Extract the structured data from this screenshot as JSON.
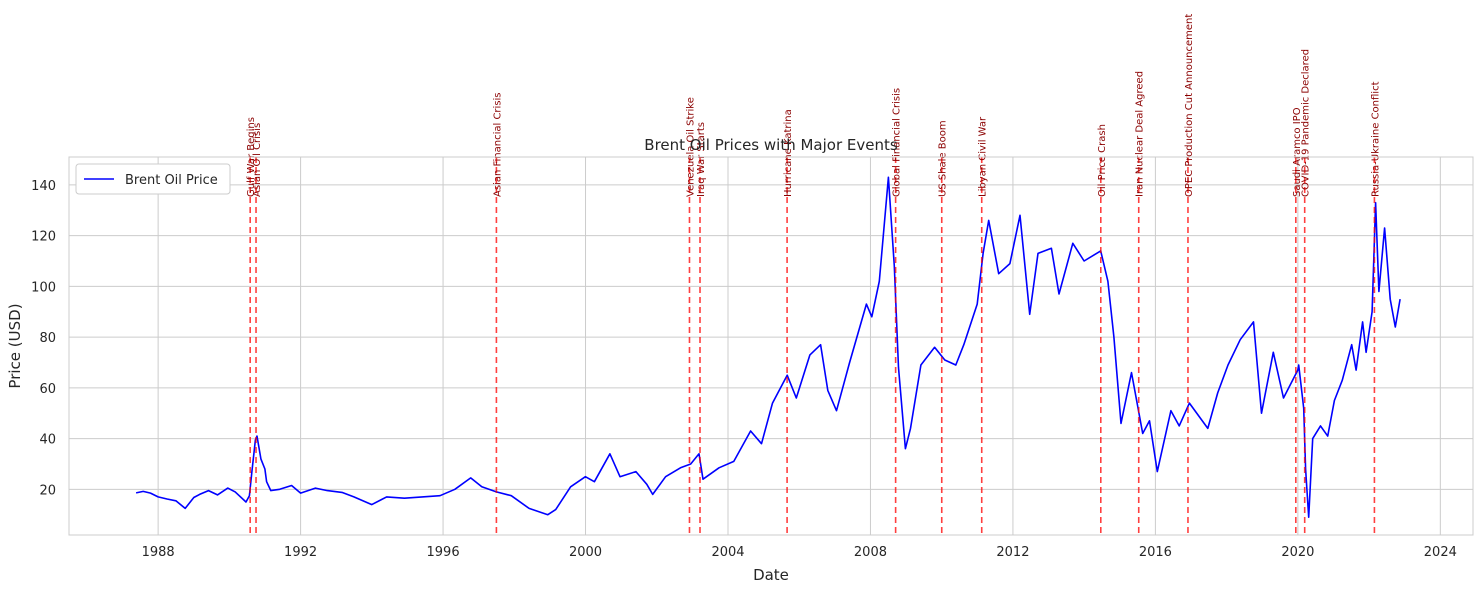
{
  "chart_data": {
    "type": "line",
    "title": "Brent Oil Prices with Major Events",
    "xlabel": "Date",
    "ylabel": "Price (USD)",
    "xlim": [
      "1985-07-01",
      "2024-12-01"
    ],
    "ylim": [
      2,
      151
    ],
    "xticks": [
      "1988",
      "1992",
      "1996",
      "2000",
      "2004",
      "2008",
      "2012",
      "2016",
      "2020",
      "2024"
    ],
    "yticks": [
      20,
      40,
      60,
      80,
      100,
      120,
      140
    ],
    "grid": true,
    "legend_position": "top-left",
    "colors": {
      "series": "#0000ff",
      "event": "#ff0000",
      "event_label": "#8b0000",
      "grid": "#cccccc"
    },
    "series": [
      {
        "name": "Brent Oil Price",
        "x": [
          "1987-05-20",
          "1987-08-01",
          "1987-10-15",
          "1988-01-01",
          "1988-04-01",
          "1988-07-01",
          "1988-10-05",
          "1989-01-01",
          "1989-03-01",
          "1989-06-01",
          "1989-09-01",
          "1989-12-15",
          "1990-03-01",
          "1990-06-20",
          "1990-07-25",
          "1990-08-20",
          "1990-09-25",
          "1990-10-11",
          "1990-11-20",
          "1990-12-31",
          "1991-01-17",
          "1991-03-01",
          "1991-06-01",
          "1991-10-01",
          "1992-01-01",
          "1992-06-01",
          "1992-10-01",
          "1993-03-01",
          "1993-07-01",
          "1993-12-31",
          "1994-06-01",
          "1994-12-01",
          "1995-06-01",
          "1995-12-01",
          "1996-05-01",
          "1996-10-10",
          "1997-02-01",
          "1997-07-01",
          "1997-12-01",
          "1998-06-01",
          "1998-12-10",
          "1999-03-01",
          "1999-08-01",
          "1999-12-31",
          "2000-04-01",
          "2000-09-07",
          "2000-12-20",
          "2001-06-01",
          "2001-09-20",
          "2001-11-20",
          "2002-04-01",
          "2002-09-01",
          "2002-12-15",
          "2003-03-10",
          "2003-04-20",
          "2003-10-01",
          "2004-03-01",
          "2004-08-20",
          "2004-12-10",
          "2005-04-01",
          "2005-08-30",
          "2005-12-01",
          "2006-04-20",
          "2006-08-08",
          "2006-10-20",
          "2007-01-18",
          "2007-06-01",
          "2007-11-20",
          "2008-01-15",
          "2008-04-01",
          "2008-07-03",
          "2008-09-01",
          "2008-10-15",
          "2008-12-24",
          "2009-02-15",
          "2009-06-01",
          "2009-10-20",
          "2010-02-01",
          "2010-05-25",
          "2010-08-15",
          "2010-12-31",
          "2011-03-01",
          "2011-04-28",
          "2011-08-08",
          "2011-12-01",
          "2012-03-13",
          "2012-06-21",
          "2012-09-14",
          "2013-01-30",
          "2013-04-17",
          "2013-09-06",
          "2013-12-31",
          "2014-06-19",
          "2014-09-01",
          "2014-11-01",
          "2015-01-13",
          "2015-05-01",
          "2015-08-24",
          "2015-11-01",
          "2016-01-20",
          "2016-06-08",
          "2016-09-01",
          "2016-12-15",
          "2017-06-21",
          "2017-10-01",
          "2018-01-15",
          "2018-05-20",
          "2018-10-03",
          "2018-12-24",
          "2019-04-24",
          "2019-08-07",
          "2019-12-31",
          "2020-01-10",
          "2020-03-01",
          "2020-03-20",
          "2020-04-21",
          "2020-06-01",
          "2020-08-20",
          "2020-11-02",
          "2021-01-10",
          "2021-04-01",
          "2021-07-06",
          "2021-08-20",
          "2021-10-26",
          "2021-12-01",
          "2022-01-31",
          "2022-03-08",
          "2022-04-11",
          "2022-06-08",
          "2022-08-05",
          "2022-09-26",
          "2022-11-14"
        ],
        "values": [
          18.6,
          19.2,
          18.5,
          17.0,
          16.2,
          15.5,
          12.5,
          16.8,
          18.0,
          19.5,
          17.8,
          20.5,
          19.0,
          15.0,
          17.5,
          27.0,
          39.5,
          41.0,
          32.0,
          28.0,
          23.0,
          19.5,
          20.0,
          21.5,
          18.5,
          20.5,
          19.5,
          18.8,
          17.0,
          14.0,
          17.0,
          16.5,
          17.0,
          17.5,
          20.0,
          24.5,
          21.0,
          19.0,
          17.5,
          12.5,
          10.0,
          12.0,
          21.0,
          25.0,
          23.0,
          34.0,
          25.0,
          27.0,
          22.0,
          18.0,
          25.0,
          28.5,
          30.0,
          34.0,
          24.0,
          28.5,
          31.0,
          43.0,
          38.0,
          54.0,
          65.0,
          56.0,
          73.0,
          77.0,
          59.0,
          51.0,
          70.0,
          93.0,
          88.0,
          102.0,
          143.0,
          108.0,
          68.0,
          36.0,
          44.0,
          69.0,
          76.0,
          71.0,
          69.0,
          77.0,
          93.0,
          113.0,
          126.0,
          105.0,
          109.0,
          128.0,
          89.0,
          113.0,
          115.0,
          97.0,
          117.0,
          110.0,
          114.0,
          102.0,
          80.0,
          46.0,
          66.0,
          42.0,
          47.0,
          27.0,
          51.0,
          45.0,
          54.0,
          44.0,
          58.0,
          69.0,
          79.0,
          86.0,
          50.0,
          74.0,
          56.0,
          67.0,
          69.0,
          52.0,
          28.0,
          9.0,
          40.0,
          45.0,
          41.0,
          55.0,
          63.0,
          77.0,
          67.0,
          86.0,
          74.0,
          90.0,
          133.0,
          98.0,
          123.0,
          95.0,
          84.0,
          95.0
        ]
      }
    ],
    "events": [
      {
        "date": "1990-08-02",
        "label": "Gulf War Begins"
      },
      {
        "date": "1990-10-01",
        "label": "Asian Oil Crisis"
      },
      {
        "date": "1997-07-01",
        "label": "Asian Financial Crisis"
      },
      {
        "date": "2002-12-02",
        "label": "Venezuela Oil Strike"
      },
      {
        "date": "2003-03-20",
        "label": "Iraq War Starts"
      },
      {
        "date": "2005-08-29",
        "label": "Hurricane Katrina"
      },
      {
        "date": "2008-09-15",
        "label": "Global Financial Crisis"
      },
      {
        "date": "2010-01-01",
        "label": "US Shale Boom"
      },
      {
        "date": "2011-02-15",
        "label": "Libyan Civil War"
      },
      {
        "date": "2014-06-20",
        "label": "Oil Price Crash"
      },
      {
        "date": "2015-07-14",
        "label": "Iran Nuclear Deal Agreed"
      },
      {
        "date": "2016-11-30",
        "label": "OPEC Production Cut Announcement"
      },
      {
        "date": "2019-12-11",
        "label": "Saudi Aramco IPO"
      },
      {
        "date": "2020-03-11",
        "label": "COVID-19 Pandemic Declared"
      },
      {
        "date": "2022-02-24",
        "label": "Russia-Ukraine Conflict"
      }
    ]
  }
}
